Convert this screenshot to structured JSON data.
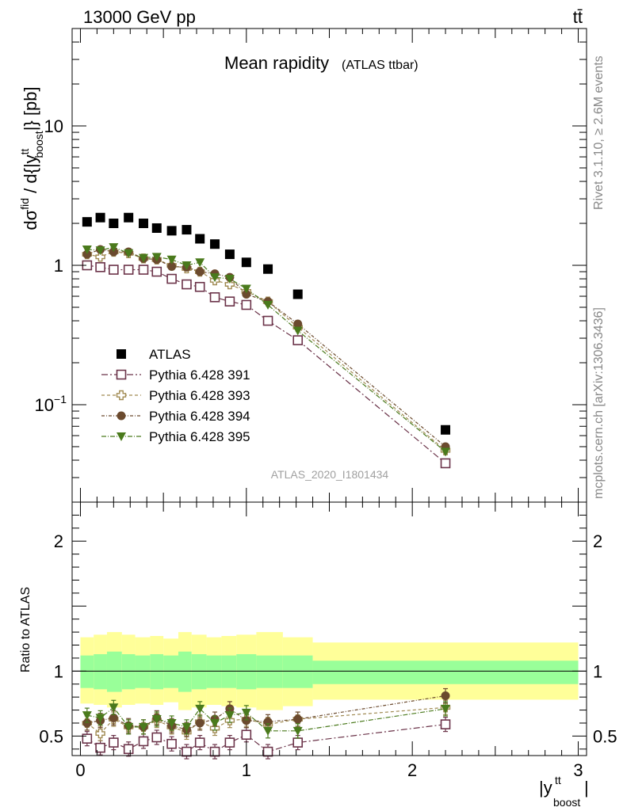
{
  "header": {
    "energy": "13000 GeV pp",
    "process": "tt̄"
  },
  "side_texts": {
    "rivet": "Rivet 3.1.10, ≥ 2.6M events",
    "mcplots": "mcplots.cern.ch [arXiv:1306.3436]"
  },
  "colors": {
    "atlas": "#000000",
    "p391": "#6b3349",
    "p393": "#a08a52",
    "p394": "#6b4a2e",
    "p395": "#4a7a1c",
    "band_inner": "#99ff99",
    "band_outer": "#ffff99"
  },
  "chart_data": {
    "type": "scatter",
    "title": "Mean rapidity",
    "subtitle": "(ATLAS ttbar)",
    "watermark": "ATLAS_2020_I1801434",
    "xlabel": "|y^tt_boost|",
    "ylabel_main": "dσ^fid / d{|y^tt_boost|} [pb]",
    "ylabel_ratio": "Ratio to ATLAS",
    "xlim": [
      -0.05,
      3.05
    ],
    "ylim_main": [
      0.02,
      50
    ],
    "yscale_main": "log",
    "ylim_ratio": [
      0.35,
      2.3
    ],
    "x_ticks": [
      "0",
      "1",
      "2",
      "3"
    ],
    "y_ticks_main": [
      "10^-1",
      "1",
      "10"
    ],
    "y_ticks_ratio": [
      "0.5",
      "1",
      "2"
    ],
    "legend_position": "left-middle",
    "x": [
      0.04,
      0.12,
      0.2,
      0.29,
      0.38,
      0.46,
      0.55,
      0.64,
      0.72,
      0.81,
      0.9,
      1.0,
      1.13,
      1.31,
      2.2
    ],
    "ref": {
      "name": "ATLAS",
      "values": [
        2.05,
        2.2,
        2.0,
        2.2,
        2.0,
        1.85,
        1.77,
        1.8,
        1.55,
        1.42,
        1.2,
        1.05,
        0.94,
        0.62,
        0.066
      ]
    },
    "ratio_bands": {
      "edges": [
        0.0,
        0.08,
        0.16,
        0.25,
        0.33,
        0.42,
        0.5,
        0.59,
        0.67,
        0.76,
        0.85,
        0.94,
        1.06,
        1.22,
        1.4,
        3.0
      ],
      "inner_low": [
        0.87,
        0.86,
        0.84,
        0.86,
        0.87,
        0.86,
        0.87,
        0.84,
        0.86,
        0.87,
        0.87,
        0.86,
        0.87,
        0.87,
        0.9
      ],
      "inner_high": [
        1.12,
        1.13,
        1.15,
        1.13,
        1.12,
        1.13,
        1.12,
        1.15,
        1.13,
        1.12,
        1.12,
        1.13,
        1.12,
        1.12,
        1.08
      ],
      "outer_low": [
        0.75,
        0.74,
        0.72,
        0.74,
        0.75,
        0.74,
        0.76,
        0.7,
        0.72,
        0.74,
        0.73,
        0.72,
        0.7,
        0.73,
        0.78
      ],
      "outer_high": [
        1.26,
        1.28,
        1.3,
        1.28,
        1.26,
        1.27,
        1.25,
        1.3,
        1.28,
        1.26,
        1.27,
        1.28,
        1.3,
        1.26,
        1.22
      ]
    },
    "series": [
      {
        "name": "Pythia 6.428 391",
        "marker": "open-square",
        "values": [
          1.0,
          0.97,
          0.93,
          0.93,
          0.93,
          0.9,
          0.8,
          0.73,
          0.7,
          0.59,
          0.55,
          0.52,
          0.4,
          0.29,
          0.038
        ],
        "ratio": [
          0.48,
          0.41,
          0.45,
          0.4,
          0.46,
          0.49,
          0.44,
          0.38,
          0.45,
          0.38,
          0.45,
          0.51,
          0.38,
          0.45,
          0.59
        ]
      },
      {
        "name": "Pythia 6.428 393",
        "marker": "open-cross",
        "values": [
          1.2,
          1.15,
          1.25,
          1.22,
          1.12,
          1.1,
          1.0,
          0.95,
          0.9,
          0.78,
          0.73,
          0.65,
          0.55,
          0.36,
          0.047
        ],
        "ratio": [
          0.6,
          0.52,
          0.63,
          0.57,
          0.57,
          0.62,
          0.57,
          0.53,
          0.61,
          0.56,
          0.62,
          0.63,
          0.59,
          0.63,
          0.72
        ]
      },
      {
        "name": "Pythia 6.428 394",
        "marker": "filled-circle",
        "values": [
          1.2,
          1.3,
          1.25,
          1.25,
          1.12,
          1.1,
          0.98,
          0.97,
          0.9,
          0.87,
          0.82,
          0.62,
          0.55,
          0.38,
          0.05
        ],
        "ratio": [
          0.6,
          0.62,
          0.64,
          0.58,
          0.57,
          0.64,
          0.58,
          0.55,
          0.6,
          0.63,
          0.71,
          0.62,
          0.61,
          0.63,
          0.81
        ]
      },
      {
        "name": "Pythia 6.428 395",
        "marker": "filled-triangle-down",
        "values": [
          1.3,
          1.28,
          1.35,
          1.22,
          1.13,
          1.15,
          1.1,
          1.0,
          1.05,
          0.82,
          0.8,
          0.68,
          0.52,
          0.34,
          0.046
        ],
        "ratio": [
          0.66,
          0.64,
          0.72,
          0.57,
          0.57,
          0.63,
          0.6,
          0.57,
          0.71,
          0.6,
          0.66,
          0.68,
          0.54,
          0.54,
          0.71
        ]
      }
    ]
  }
}
